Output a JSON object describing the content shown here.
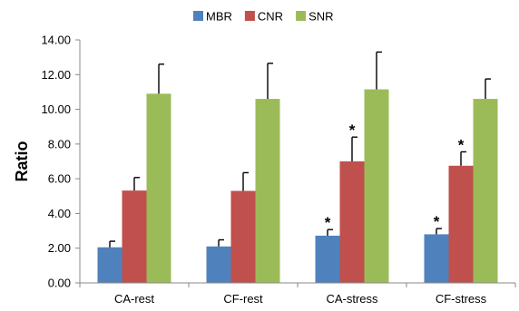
{
  "chart_data": {
    "type": "bar",
    "ylabel": "Ratio",
    "ylim": [
      0,
      14
    ],
    "ytick_step": 2,
    "ytick_labels": [
      "0.00",
      "2.00",
      "4.00",
      "6.00",
      "8.00",
      "10.00",
      "12.00",
      "14.00"
    ],
    "categories": [
      "CA-rest",
      "CF-rest",
      "CA-stress",
      "CF-stress"
    ],
    "legend_position": "top-center",
    "grid": false,
    "series": [
      {
        "name": "MBR",
        "color": "#4f81bd",
        "values": [
          2.05,
          2.1,
          2.72,
          2.8
        ],
        "errors": [
          0.35,
          0.38,
          0.35,
          0.33
        ],
        "significant": [
          false,
          false,
          true,
          true
        ]
      },
      {
        "name": "CNR",
        "color": "#c0504d",
        "values": [
          5.32,
          5.3,
          7.0,
          6.75
        ],
        "errors": [
          0.75,
          1.05,
          1.4,
          0.8
        ],
        "significant": [
          false,
          false,
          true,
          true
        ]
      },
      {
        "name": "SNR",
        "color": "#9bbb59",
        "values": [
          10.9,
          10.6,
          11.15,
          10.6
        ],
        "errors": [
          1.7,
          2.05,
          2.15,
          1.15
        ],
        "significant": [
          false,
          false,
          false,
          false
        ]
      }
    ],
    "significance_marker": "*"
  }
}
